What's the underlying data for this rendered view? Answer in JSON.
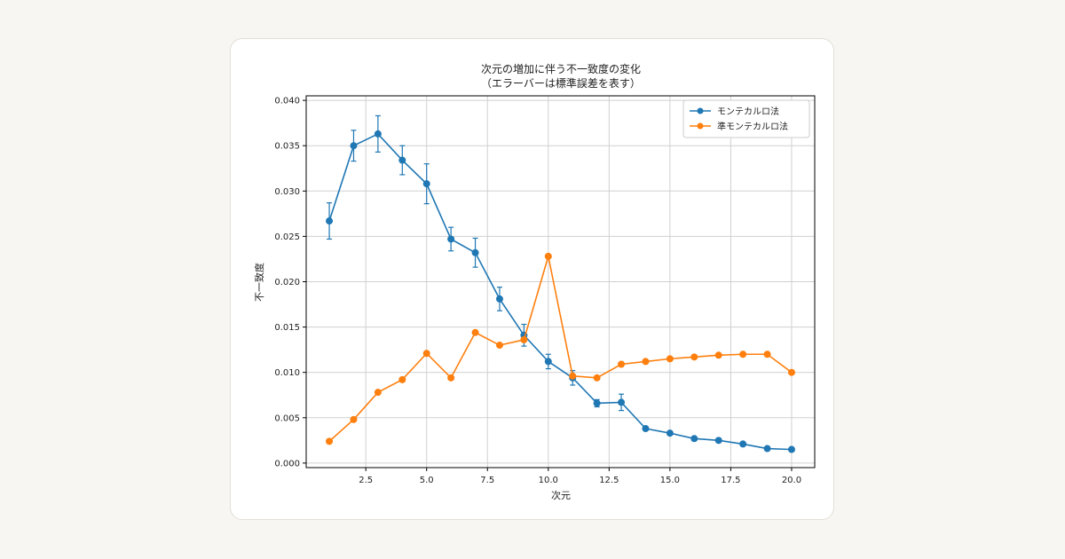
{
  "chart_data": {
    "type": "line",
    "title": "次元の増加に伴う不一致度の変化",
    "subtitle": "（エラーバーは標準誤差を表す）",
    "xlabel": "次元",
    "ylabel": "不一致度",
    "xlim": [
      0.05,
      20.95
    ],
    "ylim": [
      -0.0005,
      0.0405
    ],
    "x_ticks": [
      2.5,
      5.0,
      7.5,
      10.0,
      12.5,
      15.0,
      17.5,
      20.0
    ],
    "x_tick_labels": [
      "2.5",
      "5.0",
      "7.5",
      "10.0",
      "12.5",
      "15.0",
      "17.5",
      "20.0"
    ],
    "y_ticks": [
      0.0,
      0.005,
      0.01,
      0.015,
      0.02,
      0.025,
      0.03,
      0.035,
      0.04
    ],
    "y_tick_labels": [
      "0.000",
      "0.005",
      "0.010",
      "0.015",
      "0.020",
      "0.025",
      "0.030",
      "0.035",
      "0.040"
    ],
    "grid": true,
    "legend_position": "top-right",
    "x": [
      1,
      2,
      3,
      4,
      5,
      6,
      7,
      8,
      9,
      10,
      11,
      12,
      13,
      14,
      15,
      16,
      17,
      18,
      19,
      20
    ],
    "series": [
      {
        "name": "モンテカルロ法",
        "color": "#1f77b4",
        "values": [
          0.0267,
          0.035,
          0.0363,
          0.0334,
          0.0308,
          0.0247,
          0.0232,
          0.0181,
          0.0141,
          0.0112,
          0.0094,
          0.0066,
          0.0067,
          0.0038,
          0.0033,
          0.0027,
          0.0025,
          0.0021,
          0.0016,
          0.0015
        ],
        "errors": [
          0.002,
          0.0017,
          0.002,
          0.0016,
          0.0022,
          0.0013,
          0.0016,
          0.0013,
          0.0012,
          0.0008,
          0.0008,
          0.0004,
          0.0009,
          0.0002,
          0.0002,
          0.0002,
          0.0002,
          0.0002,
          0.0001,
          0.0001
        ]
      },
      {
        "name": "準モンテカルロ法",
        "color": "#ff7f0e",
        "values": [
          0.0024,
          0.0048,
          0.0078,
          0.0092,
          0.0121,
          0.0094,
          0.0144,
          0.013,
          0.0136,
          0.0228,
          0.0096,
          0.0094,
          0.0109,
          0.0112,
          0.0115,
          0.0117,
          0.0119,
          0.012,
          0.012,
          0.01
        ],
        "errors": [
          0,
          0,
          0,
          0,
          0,
          0,
          0,
          0,
          0,
          0,
          0,
          0,
          0,
          0,
          0,
          0,
          0,
          0,
          0,
          0
        ]
      }
    ]
  }
}
